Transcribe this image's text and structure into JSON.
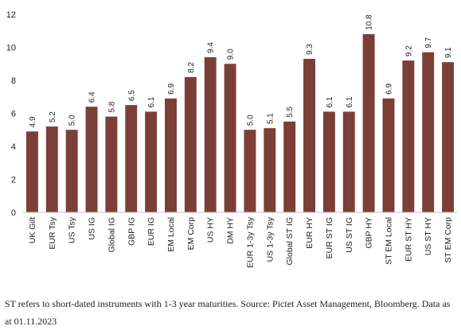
{
  "chart_data": {
    "type": "bar",
    "title": "",
    "xlabel": "",
    "ylabel": "",
    "ylim": [
      0,
      12
    ],
    "yticks": [
      0,
      2,
      4,
      6,
      8,
      10,
      12
    ],
    "grid": false,
    "legend": "none",
    "bar_color": "#7b3f38",
    "categories": [
      "UK Gilt",
      "EUR Tsy",
      "US Tsy",
      "US IG",
      "Global IG",
      "GBP IG",
      "EUR IG",
      "EM Local",
      "EM Corp",
      "US HY",
      "DM HY",
      "EUR 1-3y Tsy",
      "US 1-3y Tsy",
      "Global ST IG",
      "EUR HY",
      "EUR ST IG",
      "US ST IG",
      "GBP HY",
      "ST EM Local",
      "EUR ST HY",
      "US ST HY",
      "ST EM Corp"
    ],
    "values": [
      4.9,
      5.2,
      5.0,
      6.4,
      5.8,
      6.5,
      6.1,
      6.9,
      8.2,
      9.4,
      9.0,
      5.0,
      5.1,
      5.5,
      9.3,
      6.1,
      6.1,
      10.8,
      6.9,
      9.2,
      9.7,
      9.1
    ],
    "value_labels": [
      "4.9",
      "5.2",
      "5.0",
      "6.4",
      "5.8",
      "6.5",
      "6.1",
      "6.9",
      "8.2",
      "9.4",
      "9.0",
      "5.0",
      "5.1",
      "5.5",
      "9.3",
      "6.1",
      "6.1",
      "10.8",
      "6.9",
      "9.2",
      "9.7",
      "9.1"
    ]
  },
  "footnote": "ST refers to short-dated instruments with 1-3 year maturities. Source: Pictet Asset Management, Bloomberg. Data as at 01.11.2023"
}
